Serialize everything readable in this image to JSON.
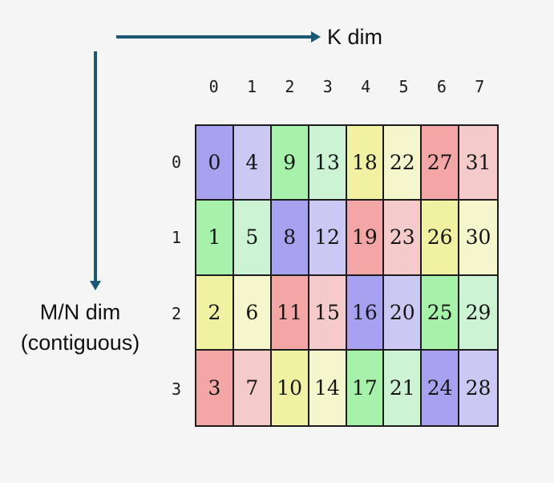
{
  "canvas": {
    "background": "#f4f5f4"
  },
  "axes": {
    "arrow_color": "#1a5876",
    "k_label": "K dim",
    "mn_label_line1": "M/N dim",
    "mn_label_line2": "(contiguous)"
  },
  "palette": {
    "purple": "#a6a2ef",
    "purple_light": "#cbc8f3",
    "green": "#a6f2aa",
    "green_light": "#cbf3d4",
    "yellow": "#f1f1a2",
    "yellow_light": "#f6f6cd",
    "red": "#f4a6a6",
    "red_light": "#f5caca",
    "border": "#1c1c1c"
  },
  "grid": {
    "col_headers": [
      "0",
      "1",
      "2",
      "3",
      "4",
      "5",
      "6",
      "7"
    ],
    "row_headers": [
      "0",
      "1",
      "2",
      "3"
    ],
    "rows": [
      {
        "cells": [
          {
            "value": "0",
            "color": "purple"
          },
          {
            "value": "4",
            "color": "purple_light"
          },
          {
            "value": "9",
            "color": "green"
          },
          {
            "value": "13",
            "color": "green_light"
          },
          {
            "value": "18",
            "color": "yellow"
          },
          {
            "value": "22",
            "color": "yellow_light"
          },
          {
            "value": "27",
            "color": "red"
          },
          {
            "value": "31",
            "color": "red_light"
          }
        ]
      },
      {
        "cells": [
          {
            "value": "1",
            "color": "green"
          },
          {
            "value": "5",
            "color": "green_light"
          },
          {
            "value": "8",
            "color": "purple"
          },
          {
            "value": "12",
            "color": "purple_light"
          },
          {
            "value": "19",
            "color": "red"
          },
          {
            "value": "23",
            "color": "red_light"
          },
          {
            "value": "26",
            "color": "yellow"
          },
          {
            "value": "30",
            "color": "yellow_light"
          }
        ]
      },
      {
        "cells": [
          {
            "value": "2",
            "color": "yellow"
          },
          {
            "value": "6",
            "color": "yellow_light"
          },
          {
            "value": "11",
            "color": "red"
          },
          {
            "value": "15",
            "color": "red_light"
          },
          {
            "value": "16",
            "color": "purple"
          },
          {
            "value": "20",
            "color": "purple_light"
          },
          {
            "value": "25",
            "color": "green"
          },
          {
            "value": "29",
            "color": "green_light"
          }
        ]
      },
      {
        "cells": [
          {
            "value": "3",
            "color": "red"
          },
          {
            "value": "7",
            "color": "red_light"
          },
          {
            "value": "10",
            "color": "yellow"
          },
          {
            "value": "14",
            "color": "yellow_light"
          },
          {
            "value": "17",
            "color": "green"
          },
          {
            "value": "21",
            "color": "green_light"
          },
          {
            "value": "24",
            "color": "purple"
          },
          {
            "value": "28",
            "color": "purple_light"
          }
        ]
      }
    ]
  }
}
